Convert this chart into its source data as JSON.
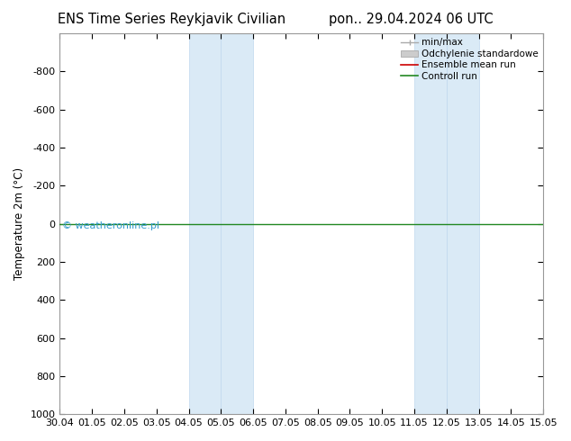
{
  "title_left": "ENS Time Series Reykjavik Civilian",
  "title_right": "pon.. 29.04.2024 06 UTC",
  "ylabel": "Temperature 2m (°C)",
  "ylim_bottom": 1000,
  "ylim_top": -1000,
  "yticks": [
    -800,
    -600,
    -400,
    -200,
    0,
    200,
    400,
    600,
    800,
    1000
  ],
  "xlim_start": 0,
  "xlim_end": 15,
  "xtick_labels": [
    "30.04",
    "01.05",
    "02.05",
    "03.05",
    "04.05",
    "05.05",
    "06.05",
    "07.05",
    "08.05",
    "09.05",
    "10.05",
    "11.05",
    "12.05",
    "13.05",
    "14.05",
    "15.05"
  ],
  "blue_bands": [
    [
      4,
      5
    ],
    [
      5,
      6
    ],
    [
      11,
      12
    ],
    [
      12,
      13
    ]
  ],
  "blue_band_color": "#daeaf6",
  "blue_band_edge_color": "#c0d8ee",
  "control_run_y": 0,
  "control_run_color": "#228822",
  "ensemble_mean_color": "#cc0000",
  "watermark": "© weatheronline.pl",
  "watermark_color": "#3399cc",
  "legend_items": [
    "min/max",
    "Odchylenie standardowe",
    "Ensemble mean run",
    "Controll run"
  ],
  "bg_color": "#ffffff",
  "spine_color": "#999999",
  "title_fontsize": 10.5,
  "tick_fontsize": 8,
  "ylabel_fontsize": 8.5,
  "legend_fontsize": 7.5
}
